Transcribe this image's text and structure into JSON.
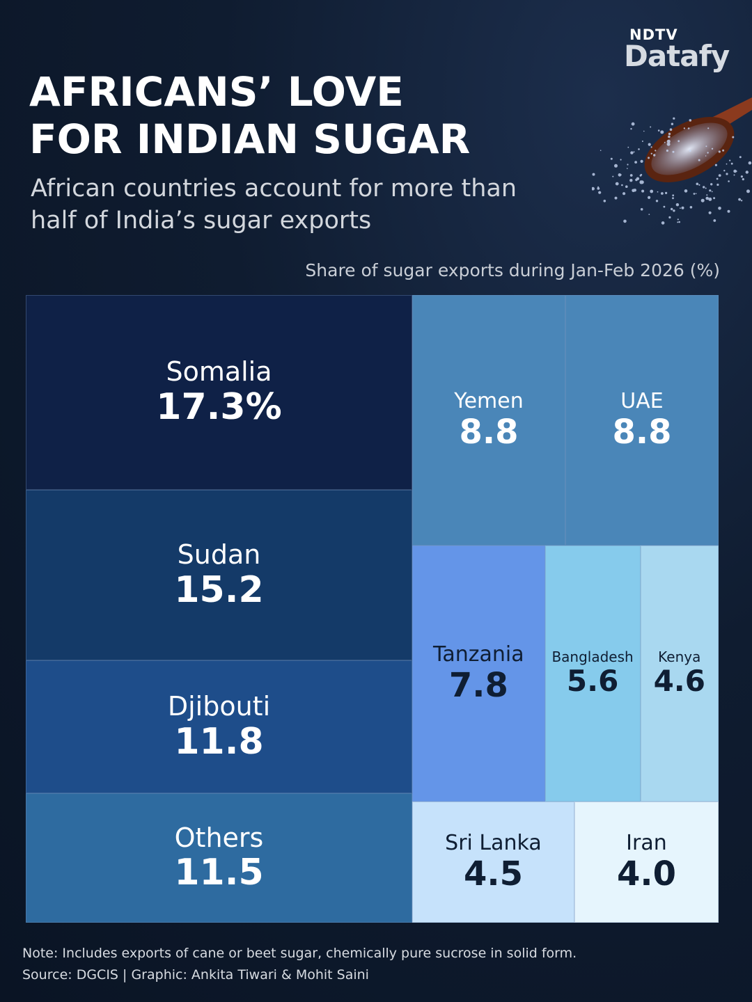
{
  "brand": {
    "network": "NDTV",
    "product": "Datafy"
  },
  "title": "AFRICANS’ LOVE\nFOR INDIAN SUGAR",
  "subtitle": "African countries account for more than half of India’s sugar exports",
  "chart_data": {
    "type": "treemap",
    "label": "Share of sugar exports during Jan-Feb 2026 (%)",
    "items": [
      {
        "name": "Somalia",
        "value": 17.3,
        "display": "17.3%",
        "color": "#0f2147",
        "text": "#ffffff"
      },
      {
        "name": "Sudan",
        "value": 15.2,
        "display": "15.2",
        "color": "#143a68",
        "text": "#ffffff"
      },
      {
        "name": "Djibouti",
        "value": 11.8,
        "display": "11.8",
        "color": "#1e4d8a",
        "text": "#ffffff"
      },
      {
        "name": "Others",
        "value": 11.5,
        "display": "11.5",
        "color": "#2e6ba0",
        "text": "#ffffff"
      },
      {
        "name": "Yemen",
        "value": 8.8,
        "display": "8.8",
        "color": "#4a86b8",
        "text": "#ffffff"
      },
      {
        "name": "UAE",
        "value": 8.8,
        "display": "8.8",
        "color": "#4a86b8",
        "text": "#ffffff"
      },
      {
        "name": "Tanzania",
        "value": 7.8,
        "display": "7.8",
        "color": "#6495e8",
        "text": "#0f1e33"
      },
      {
        "name": "Bangladesh",
        "value": 5.6,
        "display": "5.6",
        "color": "#86cbec",
        "text": "#0f1e33"
      },
      {
        "name": "Kenya",
        "value": 4.6,
        "display": "4.6",
        "color": "#a9d8f0",
        "text": "#0f1e33"
      },
      {
        "name": "Sri Lanka",
        "value": 4.5,
        "display": "4.5",
        "color": "#c6e2fb",
        "text": "#0f1e33"
      },
      {
        "name": "Iran",
        "value": 4.0,
        "display": "4.0",
        "color": "#e6f5fd",
        "text": "#0f1e33"
      }
    ]
  },
  "footer": {
    "note": "Note: Includes exports of cane or beet sugar, chemically pure sucrose in solid form.",
    "source": "Source: DGCIS  |  Graphic: Ankita Tiwari & Mohit Saini"
  }
}
